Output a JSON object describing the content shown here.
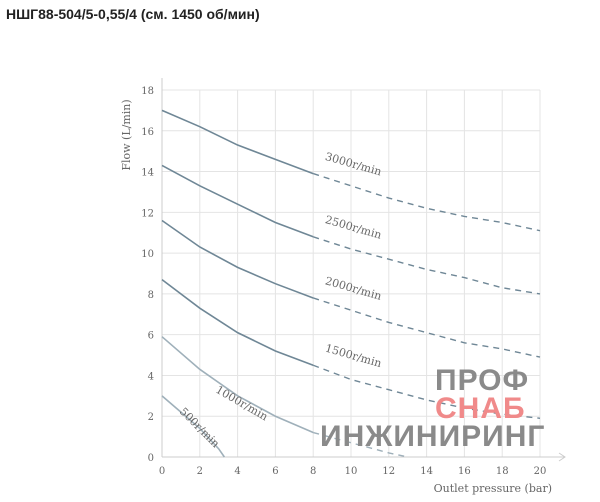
{
  "title": "НШГ88-504/5-0,55/4 (см. 1450 об/мин)",
  "watermark": {
    "lines": [
      "ПРОФ",
      "СНАБ",
      "ИНЖИНИРИНГ"
    ],
    "colors": [
      "#8a8a8a",
      "#f08a8a",
      "#8a8a8a"
    ]
  },
  "chart_data": {
    "type": "line",
    "xlabel": "Outlet pressure (bar)",
    "ylabel": "Flow (L/min)",
    "xlim": [
      0,
      20
    ],
    "ylim": [
      0,
      18
    ],
    "xticks": [
      0,
      2,
      4,
      6,
      8,
      10,
      12,
      14,
      16,
      18,
      20
    ],
    "yticks": [
      0,
      2,
      4,
      6,
      8,
      10,
      12,
      14,
      16,
      18
    ],
    "grid": true,
    "line_color": "#6f8796",
    "series": [
      {
        "name": "3000r/min",
        "solid": [
          [
            0,
            17
          ],
          [
            2,
            16.2
          ],
          [
            4,
            15.3
          ],
          [
            6,
            14.6
          ],
          [
            8,
            13.9
          ]
        ],
        "dashed": [
          [
            8,
            13.9
          ],
          [
            10,
            13.3
          ],
          [
            12,
            12.7
          ],
          [
            14,
            12.2
          ],
          [
            16,
            11.8
          ],
          [
            18,
            11.5
          ],
          [
            20,
            11.1
          ]
        ]
      },
      {
        "name": "2500r/min",
        "solid": [
          [
            0,
            14.3
          ],
          [
            2,
            13.3
          ],
          [
            4,
            12.4
          ],
          [
            6,
            11.5
          ],
          [
            8,
            10.8
          ]
        ],
        "dashed": [
          [
            8,
            10.8
          ],
          [
            10,
            10.2
          ],
          [
            12,
            9.7
          ],
          [
            14,
            9.2
          ],
          [
            16,
            8.8
          ],
          [
            18,
            8.3
          ],
          [
            20,
            8.0
          ]
        ]
      },
      {
        "name": "2000r/min",
        "solid": [
          [
            0,
            11.6
          ],
          [
            2,
            10.3
          ],
          [
            4,
            9.3
          ],
          [
            6,
            8.5
          ],
          [
            8,
            7.8
          ]
        ],
        "dashed": [
          [
            8,
            7.8
          ],
          [
            10,
            7.2
          ],
          [
            12,
            6.6
          ],
          [
            14,
            6.1
          ],
          [
            16,
            5.6
          ],
          [
            18,
            5.3
          ],
          [
            20,
            4.9
          ]
        ]
      },
      {
        "name": "1500r/min",
        "solid": [
          [
            0,
            8.7
          ],
          [
            2,
            7.3
          ],
          [
            4,
            6.1
          ],
          [
            6,
            5.2
          ],
          [
            8,
            4.5
          ]
        ],
        "dashed": [
          [
            8,
            4.5
          ],
          [
            10,
            3.8
          ],
          [
            12,
            3.3
          ],
          [
            14,
            2.8
          ],
          [
            16,
            2.4
          ],
          [
            18,
            2.1
          ],
          [
            20,
            1.9
          ]
        ]
      },
      {
        "name": "1000r/min",
        "solid": [
          [
            0,
            5.9
          ],
          [
            2,
            4.3
          ],
          [
            4,
            3.0
          ],
          [
            6,
            2.0
          ],
          [
            8,
            1.2
          ]
        ],
        "dashed": [
          [
            8,
            1.2
          ],
          [
            10,
            0.7
          ],
          [
            12,
            0.2
          ],
          [
            13,
            0
          ]
        ]
      },
      {
        "name": "500r/min",
        "solid": [
          [
            0,
            3.0
          ],
          [
            1,
            2.2
          ],
          [
            2,
            1.4
          ],
          [
            3,
            0.4
          ],
          [
            3.3,
            0
          ]
        ],
        "dashed": []
      }
    ]
  }
}
